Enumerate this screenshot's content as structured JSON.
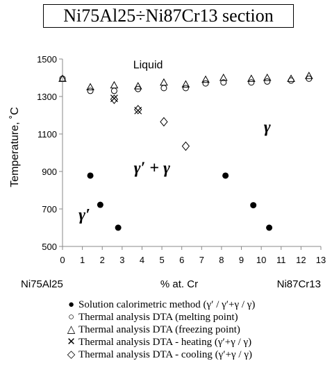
{
  "title": "Ni75Al25÷Ni87Cr13 section",
  "chart_data": {
    "type": "scatter",
    "ylabel": "Temperature, ˚C",
    "xlabel": "% at. Cr",
    "x_left_label": "Ni75Al25",
    "x_right_label": "Ni87Cr13",
    "xlim": [
      0,
      13
    ],
    "ylim": [
      500,
      1500
    ],
    "x_ticks": [
      0,
      1,
      2,
      3,
      4,
      5,
      6,
      7,
      8,
      9,
      10,
      11,
      12,
      13
    ],
    "y_ticks": [
      500,
      700,
      900,
      1100,
      1300,
      1500
    ],
    "grid": false,
    "legend_position": "bottom",
    "annotations": [
      {
        "text": "Liquid",
        "x": 4.3,
        "y": 1450
      },
      {
        "text": "γ",
        "x": 10.3,
        "y": 1110
      },
      {
        "text": "γ′ + γ",
        "x": 4.5,
        "y": 890
      },
      {
        "text": "γ′",
        "x": 1.1,
        "y": 640
      }
    ],
    "series": [
      {
        "name": "Solution calorimetric method (γ′ / γ′+γ / γ)",
        "marker": "filled-circle",
        "points": [
          [
            1.4,
            878
          ],
          [
            1.9,
            722
          ],
          [
            2.8,
            600
          ],
          [
            8.2,
            878
          ],
          [
            9.6,
            720
          ],
          [
            10.4,
            600
          ]
        ]
      },
      {
        "name": "Thermal analysis DTA (melting point)",
        "marker": "open-circle",
        "points": [
          [
            0,
            1395
          ],
          [
            1.4,
            1330
          ],
          [
            2.6,
            1330
          ],
          [
            3.8,
            1340
          ],
          [
            5.1,
            1345
          ],
          [
            6.2,
            1345
          ],
          [
            7.2,
            1370
          ],
          [
            8.1,
            1375
          ],
          [
            9.5,
            1375
          ],
          [
            10.3,
            1380
          ],
          [
            11.5,
            1385
          ],
          [
            12.4,
            1395
          ]
        ]
      },
      {
        "name": "Thermal analysis DTA (freezing point)",
        "marker": "open-triangle",
        "points": [
          [
            0,
            1395
          ],
          [
            1.4,
            1350
          ],
          [
            2.6,
            1360
          ],
          [
            3.8,
            1355
          ],
          [
            5.1,
            1375
          ],
          [
            6.2,
            1365
          ],
          [
            7.2,
            1390
          ],
          [
            8.1,
            1400
          ],
          [
            9.5,
            1395
          ],
          [
            10.3,
            1400
          ],
          [
            11.5,
            1395
          ],
          [
            12.4,
            1410
          ]
        ]
      },
      {
        "name": "Thermal analysis DTA - heating (γ′+γ / γ)",
        "marker": "cross",
        "points": [
          [
            2.6,
            1290
          ],
          [
            3.8,
            1225
          ]
        ]
      },
      {
        "name": "Thermal analysis DTA - cooling (γ′+γ / γ)",
        "marker": "open-diamond",
        "points": [
          [
            2.6,
            1285
          ],
          [
            3.8,
            1230
          ],
          [
            5.1,
            1165
          ],
          [
            6.2,
            1035
          ]
        ]
      }
    ]
  },
  "legend": [
    {
      "symbol": "●",
      "label": "Solution calorimetric method (γ′ / γ′+γ / γ)"
    },
    {
      "symbol": "○",
      "label": "Thermal analysis DTA (melting point)"
    },
    {
      "symbol": "△",
      "label": "Thermal analysis DTA (freezing point)"
    },
    {
      "symbol": "✕",
      "label": "Thermal analysis DTA - heating (γ′+γ / γ)"
    },
    {
      "symbol": "◇",
      "label": "Thermal analysis DTA - cooling (γ′+γ / γ)"
    }
  ]
}
